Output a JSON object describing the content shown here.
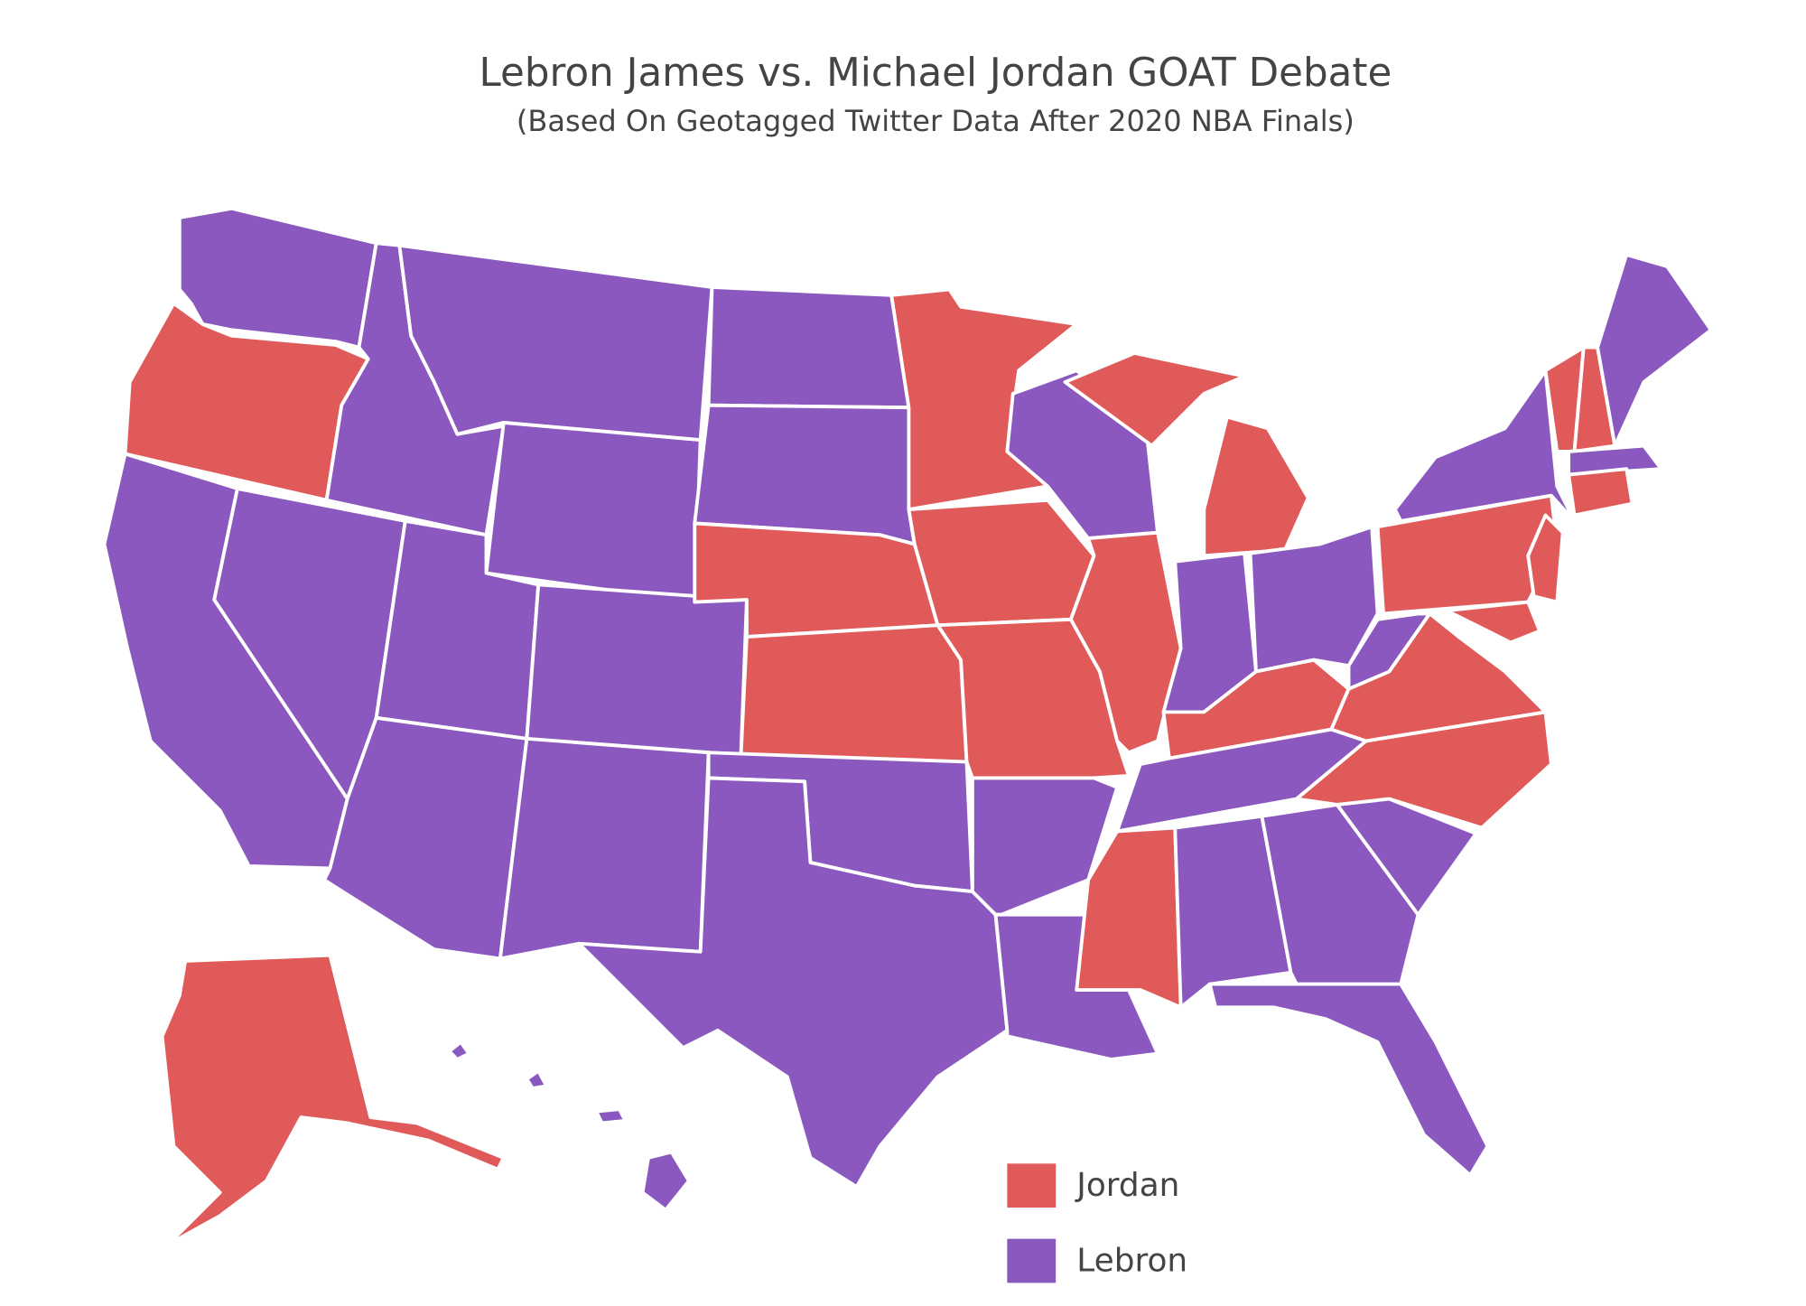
{
  "title": "Lebron James vs. Michael Jordan GOAT Debate",
  "subtitle": "(Based On Geotagged Twitter Data After 2020 NBA Finals)",
  "legend": [
    {
      "label": "Jordan",
      "color": "#e05a5a"
    },
    {
      "label": "Lebron",
      "color": "#8a58be"
    }
  ]
}
